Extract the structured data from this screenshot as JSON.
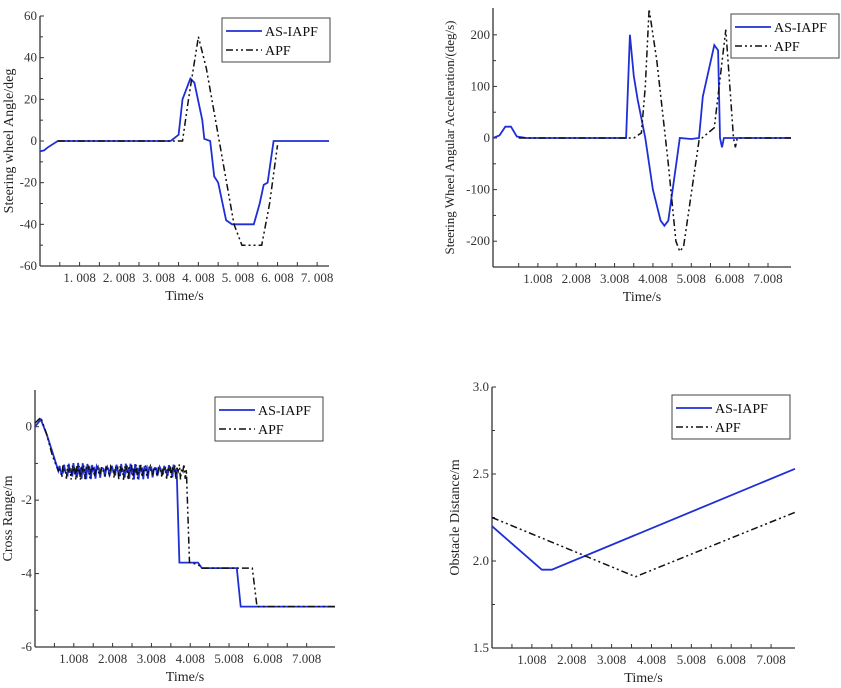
{
  "colors": {
    "as_iapf": "#1f2fd6",
    "apf": "#111111"
  },
  "chart_data": [
    {
      "type": "line",
      "title": "",
      "xlabel": "Time/s",
      "ylabel": "Steering wheel Angle/deg",
      "xlim": [
        0,
        7.3
      ],
      "ylim": [
        -60,
        60
      ],
      "xticks": [
        1,
        2,
        3,
        4,
        5,
        6,
        7
      ],
      "xtick_labels": [
        "1. 008",
        "2. 008",
        "3. 008",
        "4. 008",
        "5. 008",
        "6. 008",
        "7. 008"
      ],
      "yticks": [
        -60,
        -40,
        -20,
        0,
        20,
        40,
        60
      ],
      "ytick_labels": [
        "-60",
        "-40",
        "-20",
        "0",
        "20",
        "40",
        "60"
      ],
      "legend": [
        "AS-IAPF",
        "APF"
      ],
      "legend_position": "top-right",
      "series": [
        {
          "name": "AS-IAPF",
          "points": [
            [
              0,
              -5
            ],
            [
              0.1,
              -4.5
            ],
            [
              0.2,
              -3
            ],
            [
              0.45,
              0
            ],
            [
              3.3,
              0
            ],
            [
              3.5,
              3
            ],
            [
              3.6,
              20
            ],
            [
              3.8,
              30
            ],
            [
              3.9,
              28
            ],
            [
              4.1,
              10
            ],
            [
              4.15,
              1
            ],
            [
              4.3,
              0
            ],
            [
              4.4,
              -17
            ],
            [
              4.5,
              -20
            ],
            [
              4.7,
              -38
            ],
            [
              4.85,
              -40
            ],
            [
              5.4,
              -40
            ],
            [
              5.55,
              -30
            ],
            [
              5.65,
              -21
            ],
            [
              5.75,
              -20
            ],
            [
              5.9,
              0
            ],
            [
              7.3,
              0
            ]
          ]
        },
        {
          "name": "APF",
          "points": [
            [
              0.45,
              0
            ],
            [
              3.6,
              0
            ],
            [
              3.75,
              20
            ],
            [
              4.0,
              50
            ],
            [
              4.2,
              35
            ],
            [
              4.9,
              -40
            ],
            [
              5.1,
              -50
            ],
            [
              5.6,
              -50
            ],
            [
              5.8,
              -30
            ],
            [
              6.0,
              -2
            ]
          ]
        }
      ]
    },
    {
      "type": "line",
      "title": "",
      "xlabel": "Time/s",
      "ylabel": "Steering Wheel Angular Acceleration/(deg/s)",
      "xlim": [
        -0.17,
        7.6
      ],
      "ylim": [
        -250,
        252
      ],
      "xticks": [
        1,
        2,
        3,
        4,
        5,
        6,
        7
      ],
      "xtick_labels": [
        "1.008",
        "2.008",
        "3.008",
        "4.008",
        "5.008",
        "6.008",
        "7.008"
      ],
      "yticks": [
        -200,
        -100,
        0,
        100,
        200
      ],
      "ytick_labels": [
        "-200",
        "-100",
        "0",
        "100",
        "200"
      ],
      "legend": [
        "AS-IAPF",
        "APF"
      ],
      "legend_position": "top-right",
      "series": [
        {
          "name": "AS-IAPF",
          "points": [
            [
              -0.17,
              0
            ],
            [
              0,
              5
            ],
            [
              0.15,
              22
            ],
            [
              0.3,
              22
            ],
            [
              0.45,
              3
            ],
            [
              0.7,
              0
            ],
            [
              3.3,
              0
            ],
            [
              3.4,
              200
            ],
            [
              3.5,
              120
            ],
            [
              3.6,
              75
            ],
            [
              3.8,
              0
            ],
            [
              4.0,
              -100
            ],
            [
              4.2,
              -160
            ],
            [
              4.3,
              -170
            ],
            [
              4.4,
              -160
            ],
            [
              4.6,
              -55
            ],
            [
              4.7,
              0
            ],
            [
              5.0,
              -2
            ],
            [
              5.2,
              0
            ],
            [
              5.3,
              80
            ],
            [
              5.6,
              180
            ],
            [
              5.7,
              170
            ],
            [
              5.75,
              0
            ],
            [
              5.8,
              -18
            ],
            [
              5.85,
              0
            ],
            [
              7.6,
              0
            ]
          ]
        },
        {
          "name": "APF",
          "points": [
            [
              0.5,
              0
            ],
            [
              3.5,
              0
            ],
            [
              3.7,
              10
            ],
            [
              3.8,
              100
            ],
            [
              3.9,
              250
            ],
            [
              4.1,
              150
            ],
            [
              4.4,
              -50
            ],
            [
              4.6,
              -200
            ],
            [
              4.7,
              -220
            ],
            [
              4.8,
              -210
            ],
            [
              5.2,
              -5
            ],
            [
              5.6,
              20
            ],
            [
              5.9,
              210
            ],
            [
              6.1,
              0
            ],
            [
              6.15,
              -18
            ],
            [
              6.2,
              0
            ],
            [
              7.6,
              0
            ]
          ]
        }
      ]
    },
    {
      "type": "line",
      "title": "",
      "xlabel": "Time/s",
      "ylabel": "Cross Range/m",
      "xlim": [
        0,
        7.73
      ],
      "ylim": [
        -6,
        1
      ],
      "xticks": [
        1,
        2,
        3,
        4,
        5,
        6,
        7
      ],
      "xtick_labels": [
        "1.008",
        "2.008",
        "3.008",
        "4.008",
        "5.008",
        "6.008",
        "7.008"
      ],
      "yticks": [
        -6,
        -4,
        -2,
        0
      ],
      "ytick_labels": [
        "-6",
        "-4",
        "-2",
        "0"
      ],
      "legend": [
        "AS-IAPF",
        "APF"
      ],
      "legend_position": "top-right",
      "noise": {
        "range": [
          0.6,
          3.65
        ],
        "amplitude": 0.25
      },
      "series": [
        {
          "name": "AS-IAPF",
          "points": [
            [
              0,
              0
            ],
            [
              0.15,
              0.2
            ],
            [
              0.3,
              -0.2
            ],
            [
              0.45,
              -0.7
            ],
            [
              0.6,
              -1.2
            ],
            [
              3.65,
              -1.2
            ],
            [
              3.72,
              -3.7
            ],
            [
              4.2,
              -3.7
            ],
            [
              4.3,
              -3.85
            ],
            [
              5.2,
              -3.85
            ],
            [
              5.3,
              -4.9
            ],
            [
              7.73,
              -4.9
            ]
          ]
        },
        {
          "name": "APF",
          "points": [
            [
              0,
              0.1
            ],
            [
              0.15,
              0.25
            ],
            [
              0.3,
              -0.2
            ],
            [
              0.45,
              -0.8
            ],
            [
              0.6,
              -1.2
            ],
            [
              3.9,
              -1.2
            ],
            [
              3.98,
              -3.7
            ],
            [
              4.2,
              -3.75
            ],
            [
              4.3,
              -3.85
            ],
            [
              5.6,
              -3.85
            ],
            [
              5.72,
              -4.9
            ],
            [
              7.73,
              -4.9
            ]
          ]
        }
      ]
    },
    {
      "type": "line",
      "title": "",
      "xlabel": "Time/s",
      "ylabel": "Obstacle Distance/m",
      "xlim": [
        0,
        7.6
      ],
      "ylim": [
        1.5,
        3.0
      ],
      "xticks": [
        1,
        2,
        3,
        4,
        5,
        6,
        7
      ],
      "xtick_labels": [
        "1.008",
        "2.008",
        "3.008",
        "4.008",
        "5.008",
        "6.008",
        "7.008"
      ],
      "yticks": [
        1.5,
        2.0,
        2.5,
        3.0
      ],
      "ytick_labels": [
        "1.5",
        "2.0",
        "2.5",
        "3.0"
      ],
      "legend": [
        "AS-IAPF",
        "APF"
      ],
      "legend_position": "top-right",
      "series": [
        {
          "name": "AS-IAPF",
          "points": [
            [
              0,
              2.2
            ],
            [
              1.25,
              1.95
            ],
            [
              1.5,
              1.95
            ],
            [
              7.6,
              2.53
            ]
          ]
        },
        {
          "name": "APF",
          "points": [
            [
              0,
              2.25
            ],
            [
              3.6,
              1.91
            ],
            [
              7.6,
              2.28
            ]
          ]
        }
      ]
    }
  ]
}
